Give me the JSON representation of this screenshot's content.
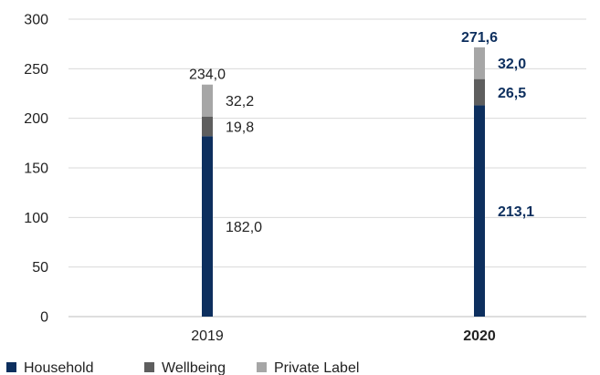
{
  "chart_data": {
    "type": "bar",
    "stacked": true,
    "categories": [
      "2019",
      "2020"
    ],
    "category_emphasis": [
      false,
      true
    ],
    "series": [
      {
        "name": "Household",
        "values": [
          182.0,
          213.1
        ],
        "labels": [
          "182,0",
          "213,1"
        ],
        "color": "#0d2f5e"
      },
      {
        "name": "Wellbeing",
        "values": [
          19.8,
          26.5
        ],
        "labels": [
          "19,8",
          "26,5"
        ],
        "color": "#5e5e5e"
      },
      {
        "name": "Private Label",
        "values": [
          32.2,
          32.0
        ],
        "labels": [
          "32,2",
          "32,0"
        ],
        "color": "#a6a6a6"
      }
    ],
    "totals": {
      "values": [
        234.0,
        271.6
      ],
      "labels": [
        "234,0",
        "271,6"
      ]
    },
    "ylim": [
      0,
      300
    ],
    "yticks": [
      0,
      50,
      100,
      150,
      200,
      250,
      300
    ],
    "ytick_labels": [
      "0",
      "50",
      "100",
      "150",
      "200",
      "250",
      "300"
    ],
    "grid": true,
    "legend_position": "bottom-left",
    "label_colors": [
      "#222222",
      "#0d2f5e"
    ],
    "title": "",
    "xlabel": "",
    "ylabel": ""
  }
}
